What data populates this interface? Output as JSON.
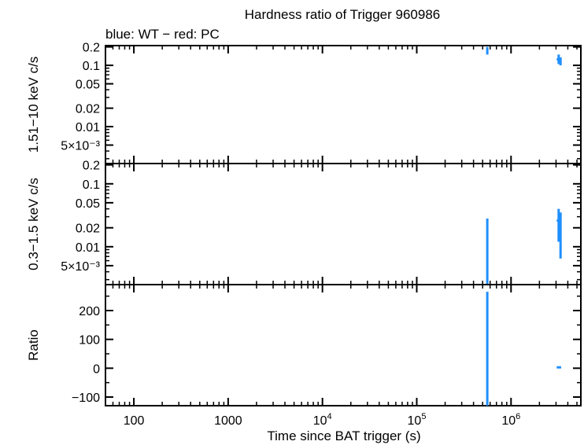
{
  "title": "Hardness ratio of Trigger 960986",
  "subtitle": "blue: WT − red: PC",
  "xlabel": "Time since BAT trigger (s)",
  "series_color": "#1f8fff",
  "chart_data": [
    {
      "type": "scatter",
      "panel": "top",
      "ylabel": "1.51−10 keV c/s",
      "yscale": "log",
      "ylim": [
        0.0025,
        0.21
      ],
      "yticks": [
        {
          "v": 0.2,
          "label": "0.2"
        },
        {
          "v": 0.1,
          "label": "0.1"
        },
        {
          "v": 0.05,
          "label": "0.05"
        },
        {
          "v": 0.02,
          "label": "0.02"
        },
        {
          "v": 0.01,
          "label": "0.01"
        },
        {
          "v": 0.005,
          "label": "5×10⁻³"
        }
      ],
      "series": [
        {
          "points": [
            {
              "x": 560000,
              "y": 0.175,
              "ylo": 0.15,
              "yhi": 0.2
            },
            {
              "x": 3200000,
              "y": 0.125,
              "ylo": 0.105,
              "yhi": 0.15,
              "xlo": 3050000,
              "xhi": 3400000
            },
            {
              "x": 3350000,
              "y": 0.115,
              "ylo": 0.1,
              "yhi": 0.135
            }
          ]
        }
      ]
    },
    {
      "type": "scatter",
      "panel": "middle",
      "ylabel": "0.3−1.5 keV c/s",
      "yscale": "log",
      "ylim": [
        0.0025,
        0.21
      ],
      "yticks": [
        {
          "v": 0.2,
          "label": "0.2"
        },
        {
          "v": 0.1,
          "label": "0.1"
        },
        {
          "v": 0.05,
          "label": "0.05"
        },
        {
          "v": 0.02,
          "label": "0.02"
        },
        {
          "v": 0.01,
          "label": "0.01"
        },
        {
          "v": 0.005,
          "label": "5×10⁻³"
        }
      ],
      "series": [
        {
          "points": [
            {
              "x": 560000,
              "y": 0.005,
              "ylo": 0.0025,
              "yhi": 0.028
            },
            {
              "x": 3200000,
              "y": 0.026,
              "ylo": 0.012,
              "yhi": 0.04,
              "xlo": 3050000,
              "xhi": 3400000
            },
            {
              "x": 3350000,
              "y": 0.018,
              "ylo": 0.0065,
              "yhi": 0.035
            }
          ]
        }
      ]
    },
    {
      "type": "scatter",
      "panel": "bottom",
      "ylabel": "Ratio",
      "yscale": "linear",
      "ylim": [
        -130,
        290
      ],
      "yticks": [
        {
          "v": 200,
          "label": "200"
        },
        {
          "v": 100,
          "label": "100"
        },
        {
          "v": 0,
          "label": "0"
        },
        {
          "v": -100,
          "label": "−100"
        }
      ],
      "series": [
        {
          "points": [
            {
              "x": 560000,
              "y": 0,
              "ylo": -130,
              "yhi": 265
            },
            {
              "x": 3200000,
              "y": 3,
              "ylo": 0,
              "yhi": 6,
              "xlo": 3050000,
              "xhi": 3400000
            }
          ]
        }
      ]
    }
  ],
  "xaxis": {
    "scale": "log",
    "xlim": [
      50,
      5500000
    ],
    "ticks": [
      {
        "v": 100,
        "label": "100"
      },
      {
        "v": 1000,
        "label": "1000"
      },
      {
        "v": 10000,
        "base": "10",
        "exp": "4"
      },
      {
        "v": 100000,
        "base": "10",
        "exp": "5"
      },
      {
        "v": 1000000,
        "base": "10",
        "exp": "6"
      }
    ]
  }
}
